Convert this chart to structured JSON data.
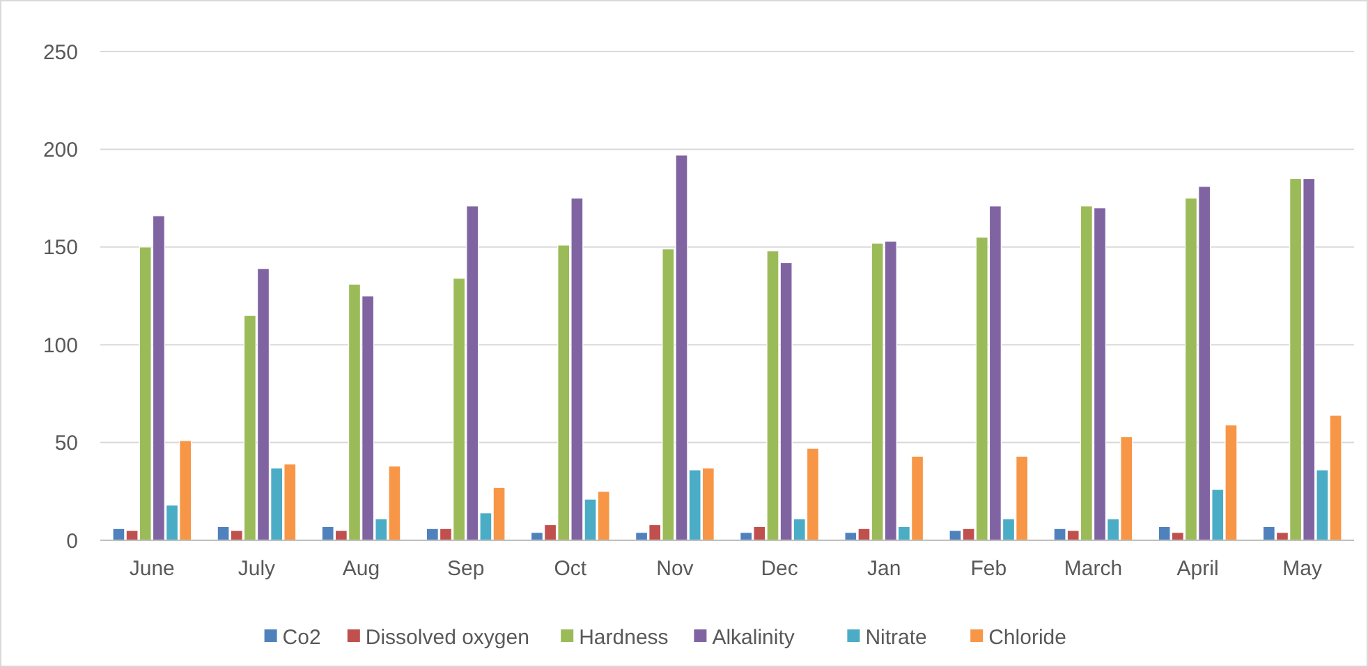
{
  "chart_data": {
    "type": "bar",
    "categories": [
      "June",
      "July",
      "Aug",
      "Sep",
      "Oct",
      "Nov",
      "Dec",
      "Jan",
      "Feb",
      "March",
      "April",
      "May"
    ],
    "series": [
      {
        "name": "Co2",
        "color": "#4f81bd",
        "values": [
          6,
          7,
          7,
          6,
          4,
          4,
          4,
          4,
          5,
          6,
          7,
          7
        ]
      },
      {
        "name": "Dissolved oxygen",
        "color": "#c0504d",
        "values": [
          5,
          5,
          5,
          6,
          8,
          8,
          7,
          6,
          6,
          5,
          4,
          4
        ]
      },
      {
        "name": "Hardness",
        "color": "#9bbb59",
        "values": [
          150,
          115,
          131,
          134,
          151,
          149,
          148,
          152,
          155,
          171,
          175,
          185
        ]
      },
      {
        "name": "Alkalinity",
        "color": "#8064a2",
        "values": [
          166,
          139,
          125,
          171,
          175,
          197,
          142,
          153,
          171,
          170,
          181,
          185
        ]
      },
      {
        "name": "Nitrate",
        "color": "#4bacc6",
        "values": [
          18,
          37,
          11,
          14,
          21,
          36,
          11,
          7,
          11,
          11,
          26,
          36
        ]
      },
      {
        "name": "Chloride",
        "color": "#f79646",
        "values": [
          51,
          39,
          38,
          27,
          25,
          37,
          47,
          43,
          43,
          53,
          59,
          64
        ]
      }
    ],
    "ylim": [
      0,
      250
    ],
    "yticks": [
      0,
      50,
      100,
      150,
      200,
      250
    ],
    "grid": "y",
    "legend": "bottom"
  }
}
